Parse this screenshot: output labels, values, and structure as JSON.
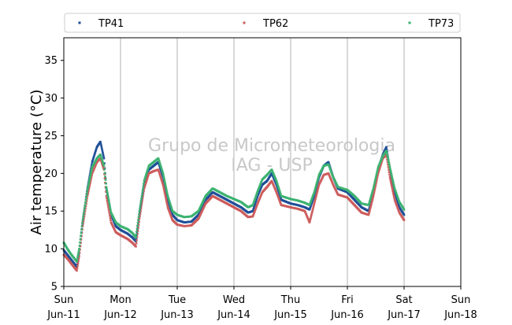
{
  "chart_data": {
    "type": "scatter",
    "title": "",
    "ylabel": "Air temperature (°C)",
    "xlabel": "",
    "ylim": [
      5,
      38
    ],
    "xlim": [
      "2017-06-11 00:00",
      "2017-06-18 00:00"
    ],
    "yticks": [
      5,
      10,
      15,
      20,
      25,
      30,
      35
    ],
    "xticks": [
      {
        "day": "Sun",
        "date": "Jun-11",
        "t": "2017-06-11 00:00"
      },
      {
        "day": "Mon",
        "date": "Jun-12",
        "t": "2017-06-12 00:00"
      },
      {
        "day": "Tue",
        "date": "Jun-13",
        "t": "2017-06-13 00:00"
      },
      {
        "day": "Wed",
        "date": "Jun-14",
        "t": "2017-06-14 00:00"
      },
      {
        "day": "Thu",
        "date": "Jun-15",
        "t": "2017-06-15 00:00"
      },
      {
        "day": "Fri",
        "date": "Jun-16",
        "t": "2017-06-16 00:00"
      },
      {
        "day": "Sat",
        "date": "Jun-17",
        "t": "2017-06-17 00:00"
      },
      {
        "day": "Sun",
        "date": "Jun-18",
        "t": "2017-06-18 00:00"
      }
    ],
    "grid": "vertical lines at day ticks",
    "legend_position": "top, above plot",
    "watermark": [
      "Grupo de Micrometeorologia",
      "IAG - USP"
    ],
    "series": [
      {
        "name": "TP41",
        "color": "#1f4e99",
        "points": [
          [
            "2017-06-11 00:00",
            9.8
          ],
          [
            "2017-06-11 01:30",
            9.2
          ],
          [
            "2017-06-11 03:00",
            8.6
          ],
          [
            "2017-06-11 04:30",
            8.0
          ],
          [
            "2017-06-11 05:30",
            7.6
          ],
          [
            "2017-06-11 06:30",
            9.5
          ],
          [
            "2017-06-11 08:00",
            13.5
          ],
          [
            "2017-06-11 10:00",
            18.0
          ],
          [
            "2017-06-11 12:00",
            21.5
          ],
          [
            "2017-06-11 14:00",
            23.5
          ],
          [
            "2017-06-11 15:30",
            24.2
          ],
          [
            "2017-06-11 17:00",
            22.0
          ],
          [
            "2017-06-11 18:00",
            18.0
          ],
          [
            "2017-06-11 20:00",
            14.5
          ],
          [
            "2017-06-11 22:00",
            13.0
          ],
          [
            "2017-06-12 00:00",
            12.5
          ],
          [
            "2017-06-12 03:00",
            12.0
          ],
          [
            "2017-06-12 05:00",
            11.5
          ],
          [
            "2017-06-12 06:30",
            11.0
          ],
          [
            "2017-06-12 08:00",
            14.5
          ],
          [
            "2017-06-12 10:00",
            18.5
          ],
          [
            "2017-06-12 12:00",
            20.5
          ],
          [
            "2017-06-12 14:00",
            21.0
          ],
          [
            "2017-06-12 16:00",
            21.5
          ],
          [
            "2017-06-12 18:00",
            19.5
          ],
          [
            "2017-06-12 20:00",
            16.5
          ],
          [
            "2017-06-12 22:00",
            14.5
          ],
          [
            "2017-06-13 00:00",
            13.8
          ],
          [
            "2017-06-13 03:00",
            13.5
          ],
          [
            "2017-06-13 06:00",
            13.6
          ],
          [
            "2017-06-13 09:00",
            14.5
          ],
          [
            "2017-06-13 12:00",
            16.5
          ],
          [
            "2017-06-13 15:00",
            17.5
          ],
          [
            "2017-06-13 18:00",
            17.0
          ],
          [
            "2017-06-13 21:00",
            16.5
          ],
          [
            "2017-06-14 00:00",
            16.0
          ],
          [
            "2017-06-14 03:00",
            15.5
          ],
          [
            "2017-06-14 06:00",
            14.8
          ],
          [
            "2017-06-14 08:00",
            15.0
          ],
          [
            "2017-06-14 10:00",
            17.0
          ],
          [
            "2017-06-14 12:00",
            18.5
          ],
          [
            "2017-06-14 14:00",
            19.0
          ],
          [
            "2017-06-14 16:00",
            20.0
          ],
          [
            "2017-06-14 18:00",
            18.5
          ],
          [
            "2017-06-14 20:00",
            16.5
          ],
          [
            "2017-06-15 00:00",
            16.0
          ],
          [
            "2017-06-15 03:00",
            15.8
          ],
          [
            "2017-06-15 06:00",
            15.5
          ],
          [
            "2017-06-15 08:00",
            15.2
          ],
          [
            "2017-06-15 10:00",
            17.0
          ],
          [
            "2017-06-15 12:00",
            19.5
          ],
          [
            "2017-06-15 14:00",
            21.0
          ],
          [
            "2017-06-15 16:00",
            21.5
          ],
          [
            "2017-06-15 18:00",
            19.5
          ],
          [
            "2017-06-15 20:00",
            18.0
          ],
          [
            "2017-06-16 00:00",
            17.5
          ],
          [
            "2017-06-16 03:00",
            16.5
          ],
          [
            "2017-06-16 06:00",
            15.5
          ],
          [
            "2017-06-16 09:00",
            15.0
          ],
          [
            "2017-06-16 11:00",
            17.5
          ],
          [
            "2017-06-16 13:00",
            20.5
          ],
          [
            "2017-06-16 15:00",
            22.5
          ],
          [
            "2017-06-16 16:30",
            23.5
          ],
          [
            "2017-06-16 18:00",
            20.5
          ],
          [
            "2017-06-16 20:00",
            17.5
          ],
          [
            "2017-06-16 22:00",
            15.5
          ],
          [
            "2017-06-17 00:00",
            14.5
          ]
        ]
      },
      {
        "name": "TP62",
        "color": "#cd5c5c",
        "points": [
          [
            "2017-06-11 00:00",
            9.2
          ],
          [
            "2017-06-11 01:30",
            8.7
          ],
          [
            "2017-06-11 03:00",
            8.1
          ],
          [
            "2017-06-11 04:30",
            7.5
          ],
          [
            "2017-06-11 05:30",
            7.1
          ],
          [
            "2017-06-11 06:30",
            9.0
          ],
          [
            "2017-06-11 08:00",
            13.0
          ],
          [
            "2017-06-11 10:00",
            17.0
          ],
          [
            "2017-06-11 12:00",
            20.0
          ],
          [
            "2017-06-11 14:00",
            21.5
          ],
          [
            "2017-06-11 15:30",
            22.0
          ],
          [
            "2017-06-11 17:00",
            20.5
          ],
          [
            "2017-06-11 18:00",
            17.0
          ],
          [
            "2017-06-11 20:00",
            13.5
          ],
          [
            "2017-06-11 22:00",
            12.2
          ],
          [
            "2017-06-12 00:00",
            11.8
          ],
          [
            "2017-06-12 03:00",
            11.3
          ],
          [
            "2017-06-12 05:00",
            10.8
          ],
          [
            "2017-06-12 06:30",
            10.3
          ],
          [
            "2017-06-12 08:00",
            14.0
          ],
          [
            "2017-06-12 10:00",
            18.0
          ],
          [
            "2017-06-12 12:00",
            20.0
          ],
          [
            "2017-06-12 14:00",
            20.3
          ],
          [
            "2017-06-12 16:00",
            20.5
          ],
          [
            "2017-06-12 18:00",
            18.5
          ],
          [
            "2017-06-12 20:00",
            15.5
          ],
          [
            "2017-06-12 22:00",
            13.8
          ],
          [
            "2017-06-13 00:00",
            13.2
          ],
          [
            "2017-06-13 03:00",
            13.0
          ],
          [
            "2017-06-13 06:00",
            13.1
          ],
          [
            "2017-06-13 09:00",
            14.0
          ],
          [
            "2017-06-13 12:00",
            16.0
          ],
          [
            "2017-06-13 15:00",
            17.0
          ],
          [
            "2017-06-13 18:00",
            16.5
          ],
          [
            "2017-06-13 21:00",
            16.0
          ],
          [
            "2017-06-14 00:00",
            15.5
          ],
          [
            "2017-06-14 03:00",
            15.0
          ],
          [
            "2017-06-14 06:00",
            14.2
          ],
          [
            "2017-06-14 08:00",
            14.3
          ],
          [
            "2017-06-14 10:00",
            16.0
          ],
          [
            "2017-06-14 12:00",
            17.5
          ],
          [
            "2017-06-14 14:00",
            18.2
          ],
          [
            "2017-06-14 16:00",
            19.0
          ],
          [
            "2017-06-14 18:00",
            17.5
          ],
          [
            "2017-06-14 20:00",
            15.8
          ],
          [
            "2017-06-15 00:00",
            15.5
          ],
          [
            "2017-06-15 03:00",
            15.3
          ],
          [
            "2017-06-15 06:00",
            15.0
          ],
          [
            "2017-06-15 08:00",
            13.5
          ],
          [
            "2017-06-15 10:00",
            16.0
          ],
          [
            "2017-06-15 12:00",
            18.5
          ],
          [
            "2017-06-15 14:00",
            19.8
          ],
          [
            "2017-06-15 16:00",
            20.0
          ],
          [
            "2017-06-15 18:00",
            18.5
          ],
          [
            "2017-06-15 20:00",
            17.2
          ],
          [
            "2017-06-16 00:00",
            16.8
          ],
          [
            "2017-06-16 03:00",
            15.8
          ],
          [
            "2017-06-16 06:00",
            14.8
          ],
          [
            "2017-06-16 09:00",
            14.5
          ],
          [
            "2017-06-16 11:00",
            17.0
          ],
          [
            "2017-06-16 13:00",
            20.0
          ],
          [
            "2017-06-16 15:00",
            22.0
          ],
          [
            "2017-06-16 16:30",
            22.5
          ],
          [
            "2017-06-16 18:00",
            19.5
          ],
          [
            "2017-06-16 20:00",
            16.5
          ],
          [
            "2017-06-16 22:00",
            14.8
          ],
          [
            "2017-06-17 00:00",
            13.8
          ]
        ]
      },
      {
        "name": "TP73",
        "color": "#3cb371",
        "points": [
          [
            "2017-06-11 00:00",
            10.8
          ],
          [
            "2017-06-11 01:30",
            10.0
          ],
          [
            "2017-06-11 03:00",
            9.3
          ],
          [
            "2017-06-11 04:30",
            8.7
          ],
          [
            "2017-06-11 05:30",
            8.3
          ],
          [
            "2017-06-11 06:30",
            10.0
          ],
          [
            "2017-06-11 08:00",
            13.8
          ],
          [
            "2017-06-11 10:00",
            17.8
          ],
          [
            "2017-06-11 12:00",
            20.8
          ],
          [
            "2017-06-11 14:00",
            22.0
          ],
          [
            "2017-06-11 15:30",
            22.5
          ],
          [
            "2017-06-11 17:00",
            21.0
          ],
          [
            "2017-06-11 18:00",
            18.2
          ],
          [
            "2017-06-11 20:00",
            14.8
          ],
          [
            "2017-06-11 22:00",
            13.5
          ],
          [
            "2017-06-12 00:00",
            13.0
          ],
          [
            "2017-06-12 03:00",
            12.6
          ],
          [
            "2017-06-12 05:00",
            12.1
          ],
          [
            "2017-06-12 06:30",
            11.5
          ],
          [
            "2017-06-12 08:00",
            15.0
          ],
          [
            "2017-06-12 10:00",
            19.0
          ],
          [
            "2017-06-12 12:00",
            21.0
          ],
          [
            "2017-06-12 14:00",
            21.5
          ],
          [
            "2017-06-12 16:00",
            22.0
          ],
          [
            "2017-06-12 18:00",
            20.0
          ],
          [
            "2017-06-12 20:00",
            17.0
          ],
          [
            "2017-06-12 22:00",
            15.0
          ],
          [
            "2017-06-13 00:00",
            14.5
          ],
          [
            "2017-06-13 03:00",
            14.2
          ],
          [
            "2017-06-13 06:00",
            14.3
          ],
          [
            "2017-06-13 09:00",
            15.0
          ],
          [
            "2017-06-13 12:00",
            17.0
          ],
          [
            "2017-06-13 15:00",
            18.0
          ],
          [
            "2017-06-13 18:00",
            17.5
          ],
          [
            "2017-06-13 21:00",
            17.0
          ],
          [
            "2017-06-14 00:00",
            16.6
          ],
          [
            "2017-06-14 03:00",
            16.2
          ],
          [
            "2017-06-14 06:00",
            15.5
          ],
          [
            "2017-06-14 08:00",
            15.8
          ],
          [
            "2017-06-14 10:00",
            17.6
          ],
          [
            "2017-06-14 12:00",
            19.2
          ],
          [
            "2017-06-14 14:00",
            19.8
          ],
          [
            "2017-06-14 16:00",
            20.5
          ],
          [
            "2017-06-14 18:00",
            19.0
          ],
          [
            "2017-06-14 20:00",
            17.0
          ],
          [
            "2017-06-15 00:00",
            16.6
          ],
          [
            "2017-06-15 03:00",
            16.4
          ],
          [
            "2017-06-15 06:00",
            16.1
          ],
          [
            "2017-06-15 08:00",
            15.8
          ],
          [
            "2017-06-15 10:00",
            17.5
          ],
          [
            "2017-06-15 12:00",
            19.8
          ],
          [
            "2017-06-15 14:00",
            21.0
          ],
          [
            "2017-06-15 16:00",
            21.2
          ],
          [
            "2017-06-15 18:00",
            19.5
          ],
          [
            "2017-06-15 20:00",
            18.2
          ],
          [
            "2017-06-16 00:00",
            17.8
          ],
          [
            "2017-06-16 03:00",
            17.0
          ],
          [
            "2017-06-16 06:00",
            16.0
          ],
          [
            "2017-06-16 09:00",
            15.8
          ],
          [
            "2017-06-16 11:00",
            18.0
          ],
          [
            "2017-06-16 13:00",
            20.8
          ],
          [
            "2017-06-16 15:00",
            22.3
          ],
          [
            "2017-06-16 16:30",
            23.0
          ],
          [
            "2017-06-16 18:00",
            20.8
          ],
          [
            "2017-06-16 20:00",
            18.0
          ],
          [
            "2017-06-16 22:00",
            16.2
          ],
          [
            "2017-06-17 00:00",
            15.2
          ]
        ]
      }
    ]
  }
}
